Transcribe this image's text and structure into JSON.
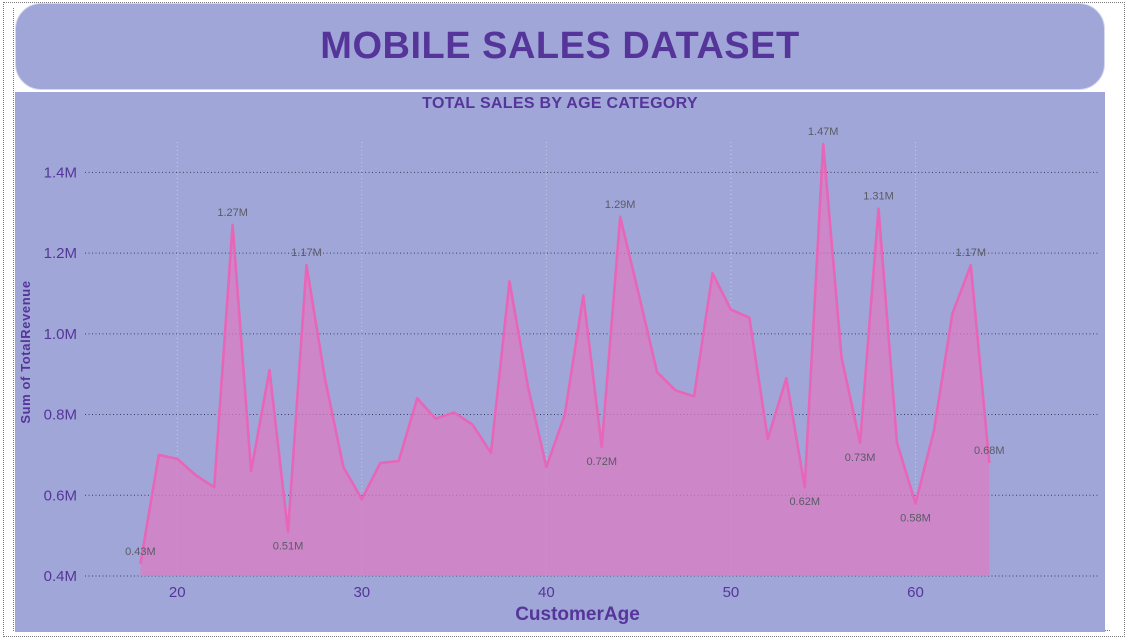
{
  "dashboard": {
    "title": "MOBILE SALES DATASET"
  },
  "chart_data": {
    "type": "area",
    "title": "TOTAL SALES BY AGE CATEGORY",
    "xlabel": "CustomerAge",
    "ylabel": "Sum of TotalRevenue",
    "xlim": [
      15,
      70
    ],
    "ylim": [
      0.4,
      1.5
    ],
    "xticks": [
      20,
      30,
      40,
      50,
      60
    ],
    "yticks": [
      0.4,
      0.6,
      0.8,
      1.0,
      1.2,
      1.4
    ],
    "ytick_labels": [
      "0.4M",
      "0.6M",
      "0.8M",
      "1.0M",
      "1.2M",
      "1.4M"
    ],
    "grid": {
      "x": true,
      "y": true
    },
    "colors": {
      "line": "#e766b8",
      "area": "#de7ac2",
      "background": "#a0a7d8",
      "text": "#55359a"
    },
    "series": [
      {
        "x": [
          18,
          19,
          20,
          21,
          22,
          23,
          24,
          25,
          26,
          27,
          28,
          29,
          30,
          31,
          32,
          33,
          34,
          35,
          36,
          37,
          38,
          39,
          40,
          41,
          42,
          43,
          44,
          45,
          46,
          47,
          48,
          49,
          50,
          51,
          52,
          53,
          54,
          55,
          56,
          57,
          58,
          59,
          60,
          61,
          62,
          63,
          64
        ],
        "values": [
          0.43,
          0.7,
          0.69,
          0.65,
          0.62,
          1.27,
          0.66,
          0.91,
          0.51,
          1.17,
          0.89,
          0.67,
          0.59,
          0.68,
          0.685,
          0.84,
          0.79,
          0.805,
          0.775,
          0.705,
          1.13,
          0.87,
          0.67,
          0.8,
          1.095,
          0.72,
          1.29,
          1.1,
          0.905,
          0.86,
          0.845,
          1.15,
          1.06,
          1.04,
          0.74,
          0.89,
          0.62,
          1.47,
          0.94,
          0.73,
          1.31,
          0.73,
          0.58,
          0.76,
          1.05,
          1.17,
          0.68
        ]
      }
    ],
    "data_labels": [
      {
        "x": 18,
        "text": "0.43M",
        "pos": "above"
      },
      {
        "x": 23,
        "text": "1.27M",
        "pos": "above"
      },
      {
        "x": 26,
        "text": "0.51M",
        "pos": "below"
      },
      {
        "x": 27,
        "text": "1.17M",
        "pos": "above"
      },
      {
        "x": 43,
        "text": "0.72M",
        "pos": "below"
      },
      {
        "x": 44,
        "text": "1.29M",
        "pos": "above"
      },
      {
        "x": 54,
        "text": "0.62M",
        "pos": "below"
      },
      {
        "x": 55,
        "text": "1.47M",
        "pos": "above"
      },
      {
        "x": 57,
        "text": "0.73M",
        "pos": "below"
      },
      {
        "x": 58,
        "text": "1.31M",
        "pos": "above"
      },
      {
        "x": 60,
        "text": "0.58M",
        "pos": "below"
      },
      {
        "x": 63,
        "text": "1.17M",
        "pos": "above"
      },
      {
        "x": 64,
        "text": "0.68M",
        "pos": "above"
      }
    ]
  }
}
